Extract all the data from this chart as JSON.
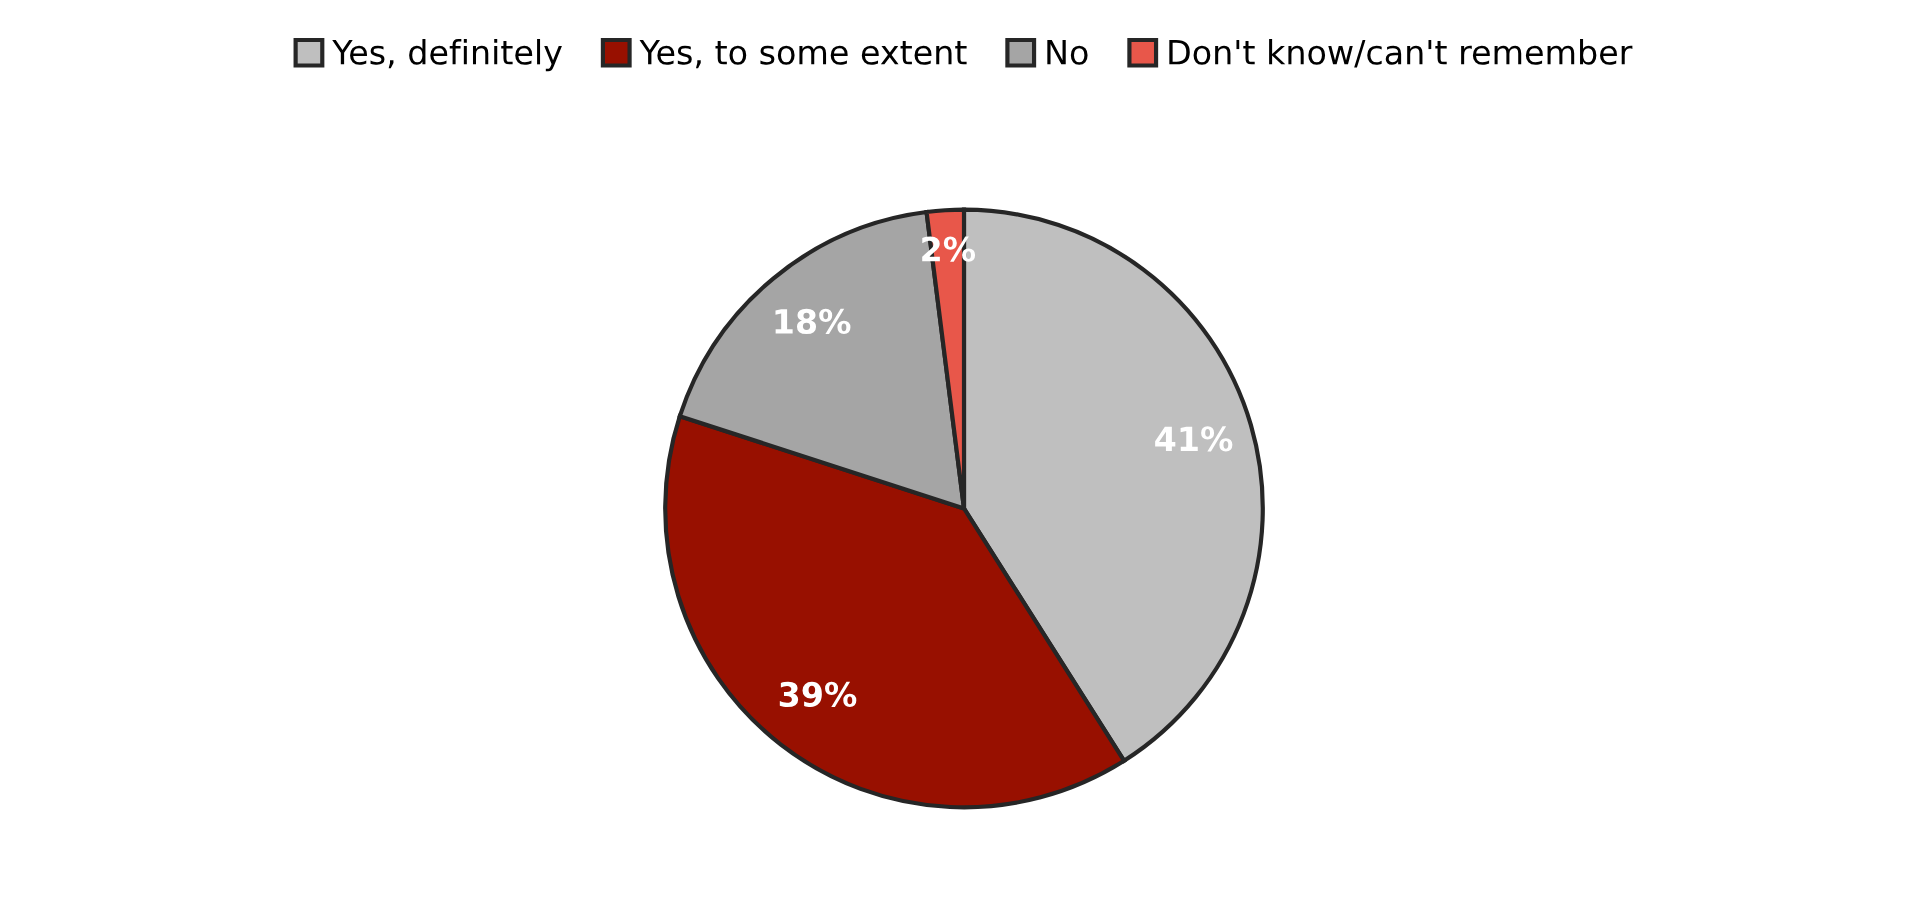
{
  "chart_data": {
    "type": "pie",
    "categories": [
      "Yes, definitely",
      "Yes, to some extent",
      "No",
      "Don't know/can't remember"
    ],
    "values": [
      41,
      39,
      18,
      2
    ],
    "colors": [
      "#bfbfbf",
      "#981000",
      "#a5a5a5",
      "#e8574a"
    ],
    "value_labels": [
      "41%",
      "39%",
      "18%",
      "2%"
    ],
    "legend": "top"
  }
}
